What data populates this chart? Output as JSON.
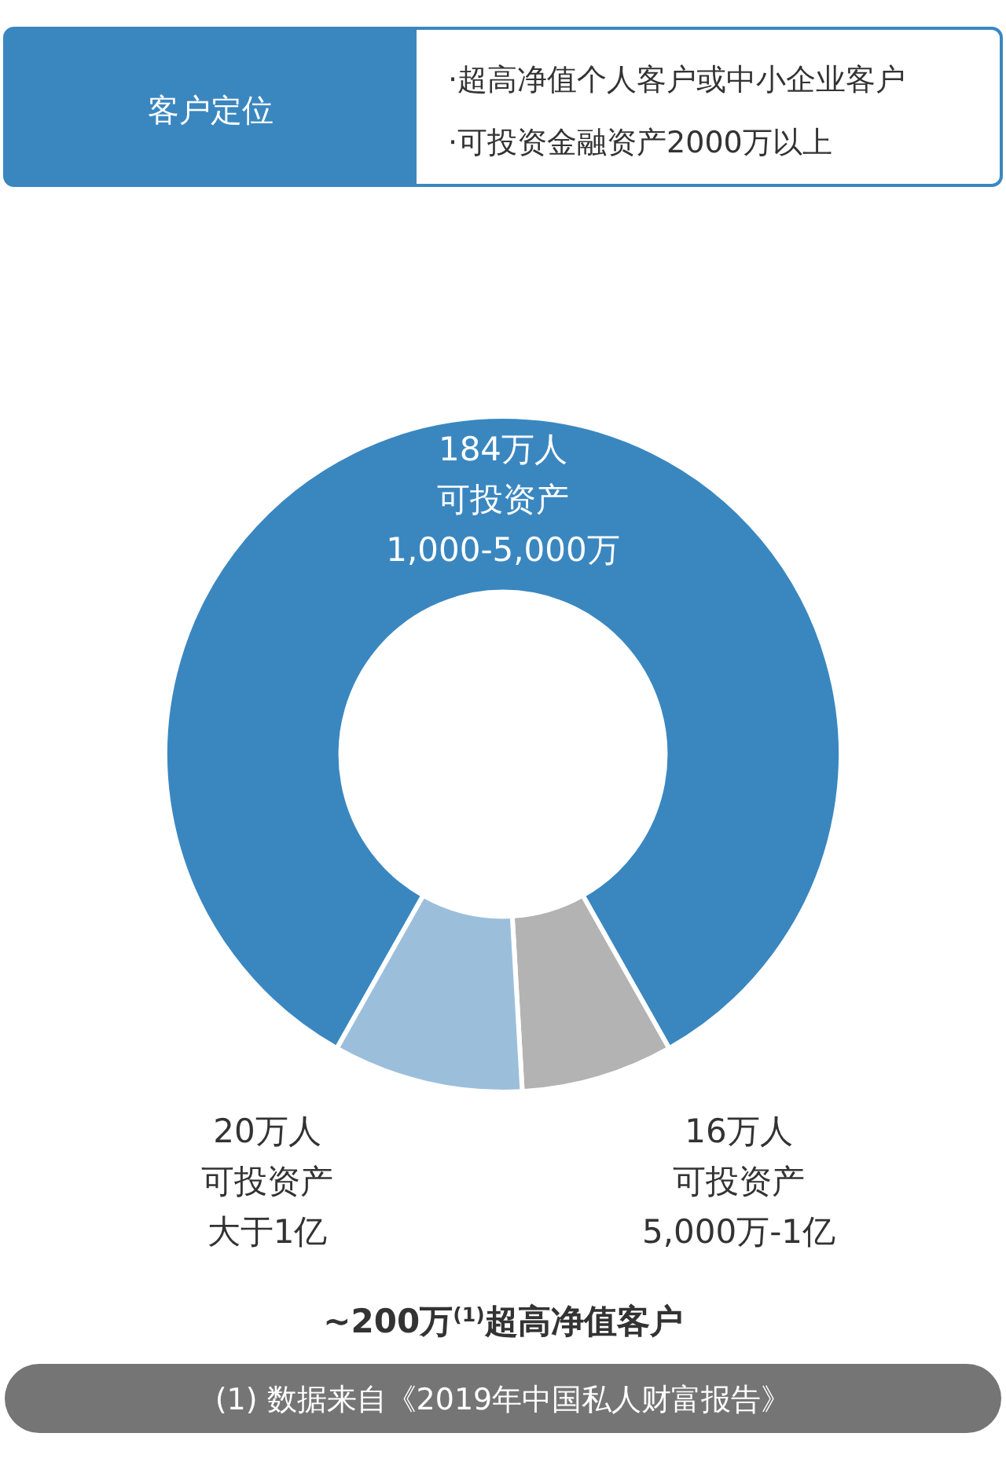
{
  "chart_data": {
    "type": "donut",
    "title": "~200万$^{(1)}$超高净值客户",
    "subtitle": "客户定位",
    "annotations": [
      "·超高净值个人客户或中小企业客户",
      "·可投资金融资产2000万以上",
      "(1) 数据来自《2019年中国私人财富报告》"
    ],
    "categories": [
      "可投资产1,000-5,000万",
      "可投资产5,000万-1亿",
      "可投资产大于1亿"
    ],
    "values": [
      184,
      16,
      20
    ],
    "value_labels": [
      "184万人",
      "16万人",
      "20万人"
    ],
    "colors": [
      "#3a87c0",
      "#b3b3b3",
      "#9bbfdb"
    ]
  }
}
